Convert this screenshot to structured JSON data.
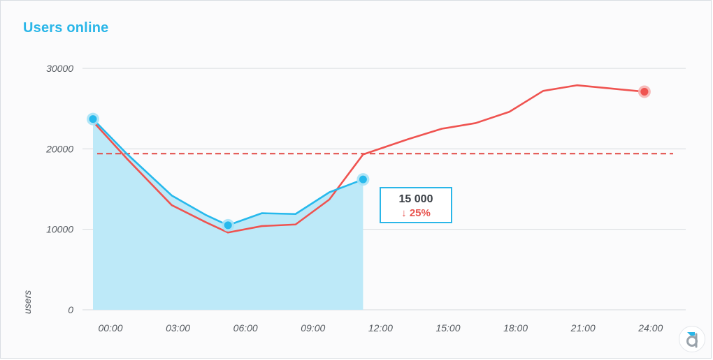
{
  "widget": {
    "title": "Users online",
    "tooltip": {
      "value": "15 000",
      "change": "25%",
      "arrow": "↓"
    },
    "logo": "devexpress-d-logo"
  },
  "colors": {
    "title": "#2ab6e8",
    "today_line": "#27b9ec",
    "today_fill": "#bde9f8",
    "yesterday_line": "#ef5350",
    "average_line": "#e24a45",
    "grid": "#d6d9dd"
  },
  "chart_data": {
    "type": "line",
    "title": "Users online",
    "ylabel": "users",
    "xlabel": "",
    "ylim": [
      0,
      30000
    ],
    "yticks": [
      0,
      10000,
      20000,
      30000
    ],
    "ytick_labels": [
      "0",
      "10000",
      "20000",
      "30000"
    ],
    "xticks": [
      0,
      3,
      6,
      9,
      12,
      15,
      18,
      21,
      24
    ],
    "xtick_labels": [
      "00:00",
      "03:00",
      "06:00",
      "09:00",
      "12:00",
      "15:00",
      "18:00",
      "21:00",
      "24:00"
    ],
    "grid": true,
    "series": [
      {
        "key": "today",
        "style": "area",
        "x": [
          0,
          1.5,
          3.5,
          5,
          6,
          7.5,
          9,
          10.5,
          12
        ],
        "y": [
          23700,
          19400,
          14200,
          11800,
          10500,
          12000,
          11900,
          14600,
          16200
        ],
        "highlight_points": [
          0,
          6,
          12
        ]
      },
      {
        "key": "yesterday",
        "style": "line",
        "x": [
          0,
          1.5,
          3.5,
          5,
          6,
          7.5,
          9,
          10.5,
          12,
          14,
          15.5,
          17,
          18.5,
          20,
          21.5,
          23,
          24.5
        ],
        "y": [
          23400,
          18800,
          13000,
          10900,
          9600,
          10400,
          10600,
          13700,
          19300,
          21200,
          22500,
          23200,
          24600,
          27200,
          27900,
          27500,
          27100
        ],
        "highlight_points": [
          24.5
        ]
      }
    ],
    "reference_lines": [
      {
        "y": 19400,
        "style": "dashed"
      }
    ]
  }
}
